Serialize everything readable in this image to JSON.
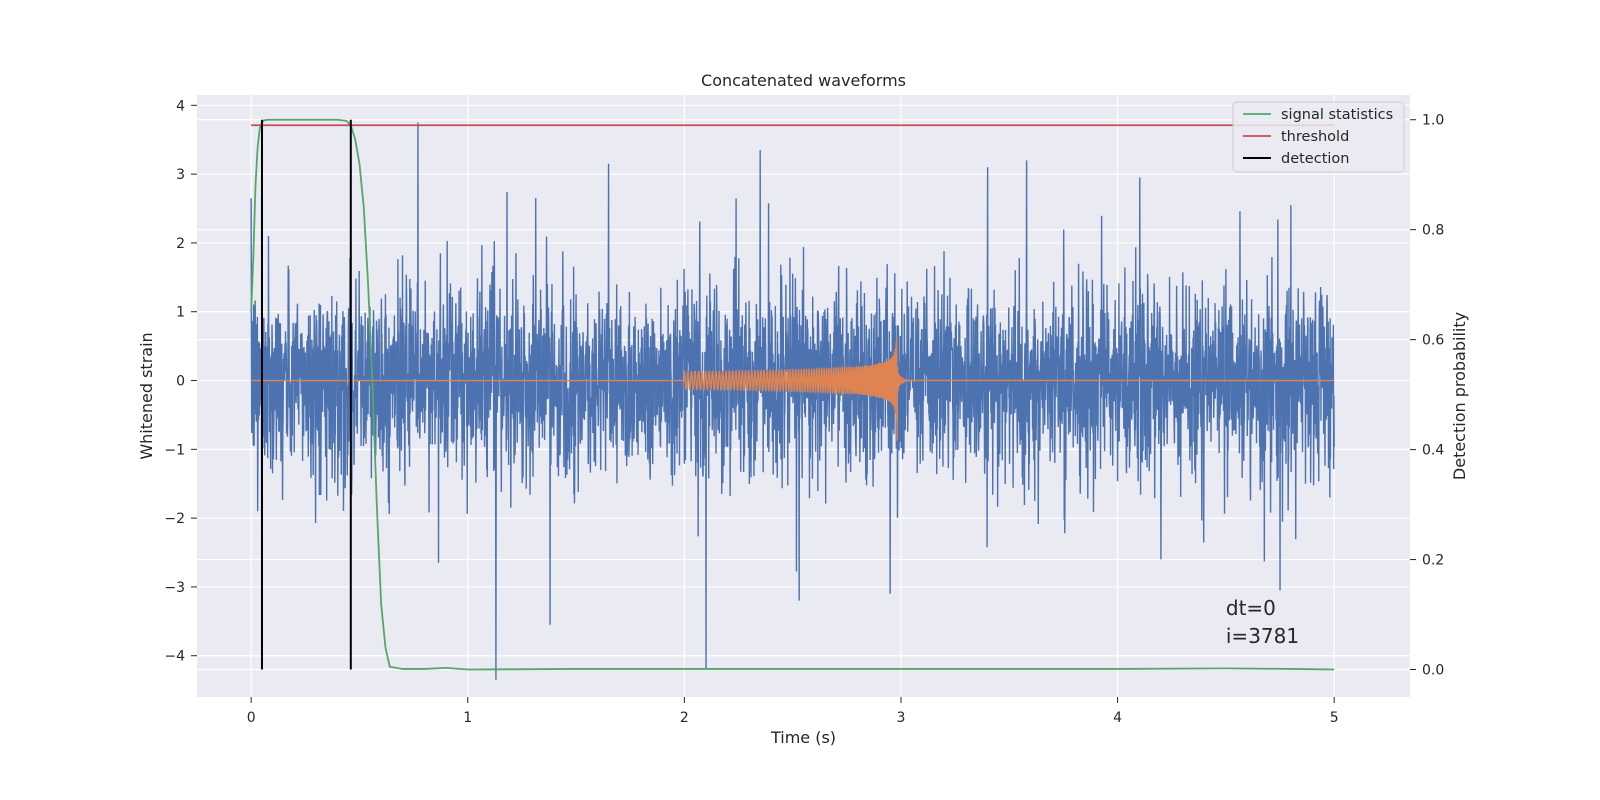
{
  "chart_data": {
    "type": "line",
    "title": "Concatenated waveforms",
    "xlabel": "Time (s)",
    "ylabel": "Whitened strain",
    "y2label": "Detection probability",
    "xlim": [
      -0.25,
      5.35
    ],
    "ylim": [
      -4.6,
      4.15
    ],
    "y2lim": [
      -0.05,
      1.045
    ],
    "xticks": [
      "0",
      "1",
      "2",
      "3",
      "4",
      "5"
    ],
    "yticks": [
      "4",
      "3",
      "2",
      "1",
      "0",
      "−1",
      "−2",
      "−3",
      "−4"
    ],
    "y2ticks": [
      "1.0",
      "0.8",
      "0.6",
      "0.4",
      "0.2",
      "0.0"
    ],
    "grid": true,
    "legend_position": "top-right",
    "series": [
      {
        "name": "",
        "axis": "left",
        "kind": "noise",
        "color": "#4c72b0",
        "x_range": [
          0,
          5
        ],
        "amplitude_rms": 0.75,
        "spikes": [
          {
            "x": 0.0,
            "y": 2.65
          },
          {
            "x": 0.03,
            "y": -1.9
          },
          {
            "x": 0.08,
            "y": 2.1
          },
          {
            "x": 0.77,
            "y": 3.75
          },
          {
            "x": 1.13,
            "y": -4.35
          },
          {
            "x": 1.38,
            "y": -3.55
          },
          {
            "x": 1.65,
            "y": 3.15
          },
          {
            "x": 2.1,
            "y": -4.2
          },
          {
            "x": 2.35,
            "y": 3.35
          },
          {
            "x": 2.53,
            "y": -3.2
          },
          {
            "x": 2.95,
            "y": -3.1
          },
          {
            "x": 3.4,
            "y": 3.1
          },
          {
            "x": 3.58,
            "y": 3.2
          },
          {
            "x": 4.2,
            "y": 3.2
          },
          {
            "x": 4.2,
            "y": -2.6
          },
          {
            "x": 4.75,
            "y": -3.05
          },
          {
            "x": 4.8,
            "y": 2.55
          },
          {
            "x": 4.98,
            "y": -1.7
          }
        ]
      },
      {
        "name": "",
        "axis": "left",
        "kind": "chirp",
        "color": "#dd8452",
        "x_range": [
          0,
          5
        ],
        "chirp_start": 2.0,
        "chirp_merger": 2.98,
        "chirp_start_amplitude": 0.13,
        "chirp_peak_amplitude": 0.62,
        "chirp_min_amplitude": -0.88
      },
      {
        "name": "signal statistics",
        "axis": "right",
        "color": "#55a868",
        "x": [
          0.0,
          0.01,
          0.02,
          0.03,
          0.04,
          0.05,
          0.06,
          0.08,
          0.1,
          0.2,
          0.3,
          0.4,
          0.44,
          0.46,
          0.48,
          0.5,
          0.52,
          0.54,
          0.56,
          0.58,
          0.6,
          0.62,
          0.64,
          0.7,
          0.8,
          0.9,
          1.0,
          1.5,
          2.0,
          2.5,
          3.0,
          3.5,
          4.0,
          4.5,
          4.8,
          5.0
        ],
        "y": [
          0.65,
          0.75,
          0.88,
          0.95,
          0.985,
          0.995,
          0.999,
          1.0,
          1.0,
          1.0,
          1.0,
          1.0,
          0.998,
          0.99,
          0.965,
          0.92,
          0.84,
          0.7,
          0.52,
          0.3,
          0.12,
          0.04,
          0.005,
          0.001,
          0.001,
          0.003,
          0.0,
          0.001,
          0.001,
          0.001,
          0.001,
          0.001,
          0.001,
          0.002,
          0.001,
          0.0
        ]
      },
      {
        "name": "threshold",
        "axis": "right",
        "color": "#c44e52",
        "x": [
          0,
          5
        ],
        "y": [
          0.99,
          0.99
        ]
      }
    ],
    "detections": {
      "name": "detection",
      "color": "#000000",
      "x": [
        0.05,
        0.46
      ],
      "y2_range": [
        0.0,
        1.0
      ]
    },
    "annotation": [
      "dt=0",
      "i=3781"
    ]
  }
}
